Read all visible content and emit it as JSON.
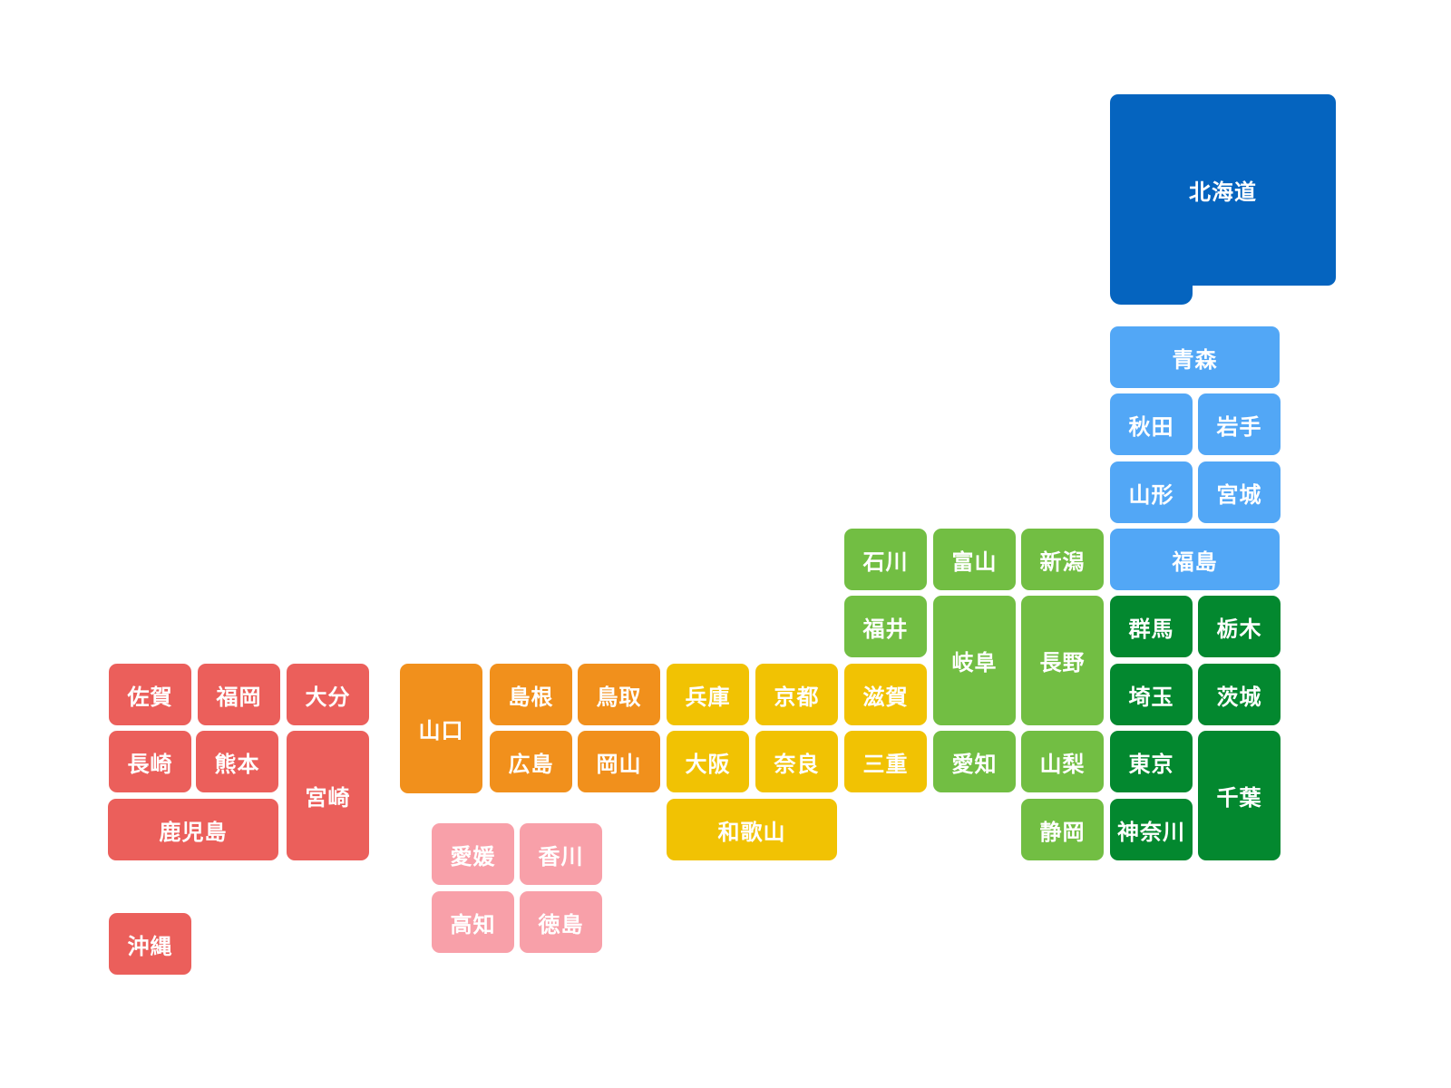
{
  "regions": {
    "hokkaido": {
      "color": "#0564BF"
    },
    "tohoku": {
      "color": "#52A7F6"
    },
    "kanto": {
      "color": "#03882F"
    },
    "chubu": {
      "color": "#72BE43"
    },
    "kinki": {
      "color": "#F1C203"
    },
    "chugoku": {
      "color": "#F1901C"
    },
    "shikoku": {
      "color": "#F8A0A9"
    },
    "kyushu": {
      "color": "#EB5F5B"
    }
  },
  "prefectures": [
    {
      "name": "北海道",
      "region": "hokkaido"
    },
    {
      "name": "青森",
      "region": "tohoku"
    },
    {
      "name": "秋田",
      "region": "tohoku"
    },
    {
      "name": "岩手",
      "region": "tohoku"
    },
    {
      "name": "山形",
      "region": "tohoku"
    },
    {
      "name": "宮城",
      "region": "tohoku"
    },
    {
      "name": "福島",
      "region": "tohoku"
    },
    {
      "name": "群馬",
      "region": "kanto"
    },
    {
      "name": "栃木",
      "region": "kanto"
    },
    {
      "name": "埼玉",
      "region": "kanto"
    },
    {
      "name": "茨城",
      "region": "kanto"
    },
    {
      "name": "東京",
      "region": "kanto"
    },
    {
      "name": "千葉",
      "region": "kanto"
    },
    {
      "name": "神奈川",
      "region": "kanto"
    },
    {
      "name": "石川",
      "region": "chubu"
    },
    {
      "name": "富山",
      "region": "chubu"
    },
    {
      "name": "新潟",
      "region": "chubu"
    },
    {
      "name": "福井",
      "region": "chubu"
    },
    {
      "name": "岐阜",
      "region": "chubu"
    },
    {
      "name": "長野",
      "region": "chubu"
    },
    {
      "name": "愛知",
      "region": "chubu"
    },
    {
      "name": "山梨",
      "region": "chubu"
    },
    {
      "name": "静岡",
      "region": "chubu"
    },
    {
      "name": "滋賀",
      "region": "kinki"
    },
    {
      "name": "兵庫",
      "region": "kinki"
    },
    {
      "name": "京都",
      "region": "kinki"
    },
    {
      "name": "三重",
      "region": "kinki"
    },
    {
      "name": "大阪",
      "region": "kinki"
    },
    {
      "name": "奈良",
      "region": "kinki"
    },
    {
      "name": "和歌山",
      "region": "kinki"
    },
    {
      "name": "山口",
      "region": "chugoku"
    },
    {
      "name": "島根",
      "region": "chugoku"
    },
    {
      "name": "鳥取",
      "region": "chugoku"
    },
    {
      "name": "広島",
      "region": "chugoku"
    },
    {
      "name": "岡山",
      "region": "chugoku"
    },
    {
      "name": "愛媛",
      "region": "shikoku"
    },
    {
      "name": "香川",
      "region": "shikoku"
    },
    {
      "name": "高知",
      "region": "shikoku"
    },
    {
      "name": "徳島",
      "region": "shikoku"
    },
    {
      "name": "佐賀",
      "region": "kyushu"
    },
    {
      "name": "福岡",
      "region": "kyushu"
    },
    {
      "name": "大分",
      "region": "kyushu"
    },
    {
      "name": "長崎",
      "region": "kyushu"
    },
    {
      "name": "熊本",
      "region": "kyushu"
    },
    {
      "name": "宮崎",
      "region": "kyushu"
    },
    {
      "name": "鹿児島",
      "region": "kyushu"
    },
    {
      "name": "沖縄",
      "region": "kyushu"
    }
  ]
}
